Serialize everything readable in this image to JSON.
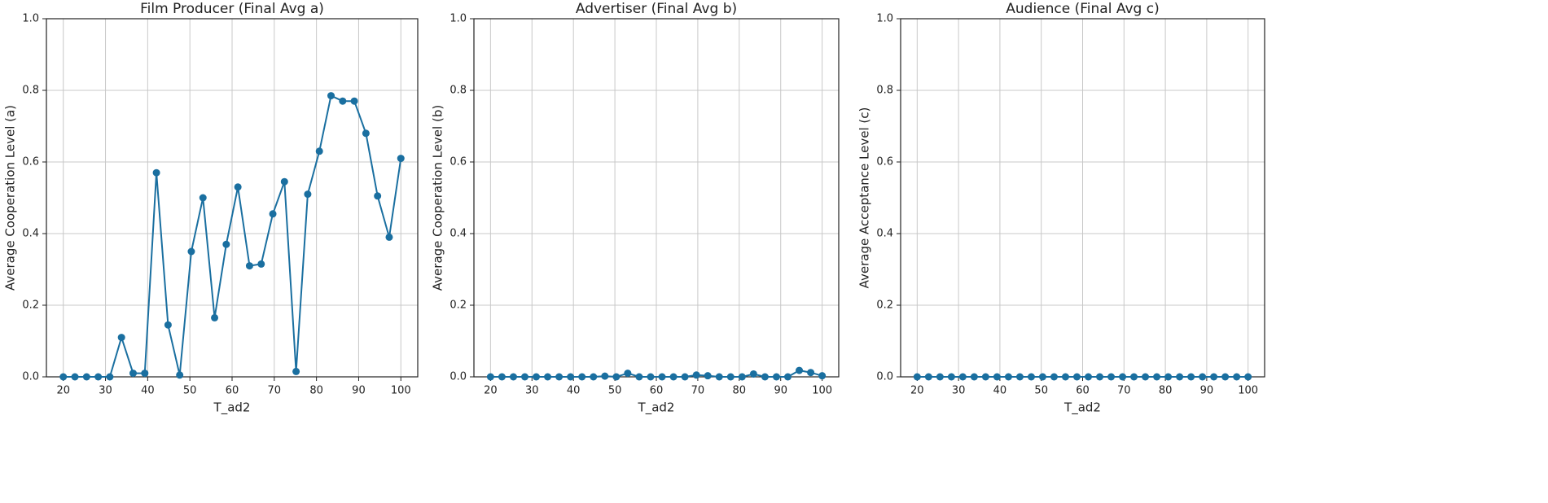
{
  "chart_data": [
    {
      "type": "line",
      "title": "Film Producer (Final Avg a)",
      "xlabel": "T_ad2",
      "ylabel": "Average Cooperation Level (a)",
      "x": [
        20,
        22.76,
        25.52,
        28.28,
        31.03,
        33.79,
        36.55,
        39.31,
        42.07,
        44.83,
        47.59,
        50.34,
        53.1,
        55.86,
        58.62,
        61.38,
        64.14,
        66.9,
        69.66,
        72.41,
        75.17,
        77.93,
        80.69,
        83.45,
        86.21,
        88.97,
        91.72,
        94.48,
        97.24,
        100
      ],
      "values": [
        0,
        0,
        0,
        0,
        0,
        0.11,
        0.01,
        0.01,
        0.57,
        0.145,
        0.005,
        0.35,
        0.5,
        0.165,
        0.37,
        0.53,
        0.31,
        0.315,
        0.455,
        0.545,
        0.015,
        0.51,
        0.63,
        0.785,
        0.77,
        0.77,
        0.68,
        0.505,
        0.39,
        0.61
      ],
      "color": "#1a6fa0",
      "xlim": [
        16,
        104
      ],
      "ylim": [
        0,
        1
      ],
      "xticks": [
        20,
        30,
        40,
        50,
        60,
        70,
        80,
        90,
        100
      ],
      "yticks": [
        {
          "value": 0,
          "label": "0.0"
        },
        0.2,
        0.4,
        0.6,
        0.8,
        {
          "value": 1,
          "label": "1.0"
        }
      ],
      "grid": true
    },
    {
      "type": "line",
      "title": "Advertiser (Final Avg b)",
      "xlabel": "T_ad2",
      "ylabel": "Average Cooperation Level (b)",
      "x": [
        20,
        22.76,
        25.52,
        28.28,
        31.03,
        33.79,
        36.55,
        39.31,
        42.07,
        44.83,
        47.59,
        50.34,
        53.1,
        55.86,
        58.62,
        61.38,
        64.14,
        66.9,
        69.66,
        72.41,
        75.17,
        77.93,
        80.69,
        83.45,
        86.21,
        88.97,
        91.72,
        94.48,
        97.24,
        100
      ],
      "values": [
        0,
        0,
        0,
        0,
        0,
        0,
        0,
        0,
        0,
        0,
        0.002,
        0,
        0.01,
        0,
        0,
        0,
        0,
        0,
        0.005,
        0.003,
        0,
        0,
        0,
        0.008,
        0,
        0,
        0,
        0.018,
        0.012,
        0.003
      ],
      "color": "#1a6fa0",
      "xlim": [
        16,
        104
      ],
      "ylim": [
        0,
        1
      ],
      "xticks": [
        20,
        30,
        40,
        50,
        60,
        70,
        80,
        90,
        100
      ],
      "yticks": [
        {
          "value": 0,
          "label": "0.0"
        },
        0.2,
        0.4,
        0.6,
        0.8,
        {
          "value": 1,
          "label": "1.0"
        }
      ],
      "grid": true
    },
    {
      "type": "line",
      "title": "Audience (Final Avg c)",
      "xlabel": "T_ad2",
      "ylabel": "Average Acceptance Level (c)",
      "x": [
        20,
        22.76,
        25.52,
        28.28,
        31.03,
        33.79,
        36.55,
        39.31,
        42.07,
        44.83,
        47.59,
        50.34,
        53.1,
        55.86,
        58.62,
        61.38,
        64.14,
        66.9,
        69.66,
        72.41,
        75.17,
        77.93,
        80.69,
        83.45,
        86.21,
        88.97,
        91.72,
        94.48,
        97.24,
        100
      ],
      "values": [
        0,
        0,
        0,
        0,
        0,
        0,
        0,
        0,
        0,
        0,
        0,
        0,
        0,
        0,
        0,
        0,
        0,
        0,
        0,
        0,
        0,
        0,
        0,
        0,
        0,
        0,
        0,
        0,
        0,
        0
      ],
      "color": "#1a6fa0",
      "xlim": [
        16,
        104
      ],
      "ylim": [
        0,
        1
      ],
      "xticks": [
        20,
        30,
        40,
        50,
        60,
        70,
        80,
        90,
        100
      ],
      "yticks": [
        {
          "value": 0,
          "label": "0.0"
        },
        0.2,
        0.4,
        0.6,
        0.8,
        {
          "value": 1,
          "label": "1.0"
        }
      ],
      "grid": true
    }
  ]
}
